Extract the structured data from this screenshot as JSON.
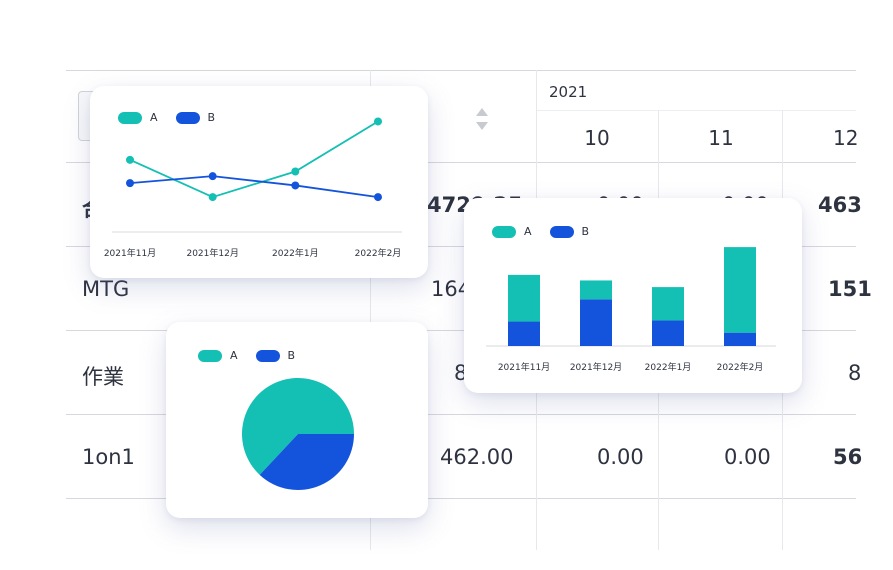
{
  "colors": {
    "A": "#14bfb4",
    "B": "#1454dc",
    "grid": "#d6d8dd"
  },
  "table": {
    "header": {
      "year": "2021",
      "months": [
        "10",
        "11",
        "12"
      ]
    },
    "rows": [
      {
        "label": "合",
        "total": "4729.25",
        "v10": "0.00",
        "v11": "0.00",
        "v12": "463"
      },
      {
        "label": "MTG",
        "total": "164",
        "v10": "",
        "v11": "",
        "v12": "151"
      },
      {
        "label": "作業",
        "total": "8",
        "v10": "",
        "v11": "",
        "v12": "8"
      },
      {
        "label": "1on1",
        "total": "462.00",
        "v10": "0.00",
        "v11": "0.00",
        "v12": "56"
      }
    ]
  },
  "chart_data": [
    {
      "type": "line",
      "categories": [
        "2021年11月",
        "2021年12月",
        "2022年1月",
        "2022年2月"
      ],
      "series": [
        {
          "name": "A",
          "values": [
            62,
            30,
            52,
            95
          ]
        },
        {
          "name": "B",
          "values": [
            42,
            48,
            40,
            30
          ]
        }
      ],
      "ylim": [
        0,
        110
      ],
      "legend": "top-left"
    },
    {
      "type": "bar",
      "stacked": true,
      "categories": [
        "2021年11月",
        "2021年12月",
        "2022年1月",
        "2022年2月"
      ],
      "series": [
        {
          "name": "B",
          "values": [
            22,
            42,
            23,
            12
          ]
        },
        {
          "name": "A",
          "values": [
            42,
            17,
            30,
            77
          ]
        }
      ],
      "ylim": [
        0,
        90
      ],
      "legend": "top-left"
    },
    {
      "type": "pie",
      "slices": [
        {
          "name": "A",
          "value": 63
        },
        {
          "name": "B",
          "value": 37
        }
      ],
      "legend": "top-left"
    }
  ]
}
